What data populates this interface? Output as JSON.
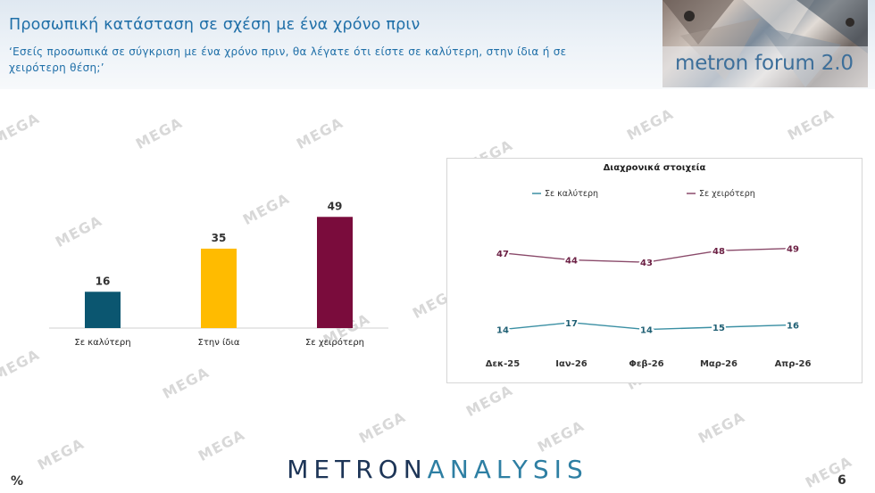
{
  "header": {
    "title": "Προσωπική κατάσταση σε σχέση με ένα χρόνο πριν",
    "subtitle": "‘Εσείς προσωπικά σε σύγκριση με ένα χρόνο πριν, θα λέγατε ότι είστε σε καλύτερη, στην ίδια ή σε χειρότερη θέση;’",
    "logo_text": "metron forum 2.0"
  },
  "watermark_text": "MEGA",
  "chart_data": [
    {
      "type": "bar",
      "categories": [
        "Σε καλύτερη",
        "Στην ίδια",
        "Σε χειρότερη"
      ],
      "values": [
        16,
        35,
        49
      ],
      "colors": [
        "#0b5670",
        "#ffbb00",
        "#7a0c3c"
      ],
      "ylim": [
        0,
        55
      ],
      "grid": false
    },
    {
      "type": "line",
      "title": "Διαχρονικά στοιχεία",
      "x": [
        "Δεκ-25",
        "Ιαν-26",
        "Φεβ-26",
        "Μαρ-26",
        "Απρ-26"
      ],
      "series": [
        {
          "name": "Σε καλύτερη",
          "values": [
            14,
            17,
            14,
            15,
            16
          ],
          "color": "#3a8fa3",
          "label_color": "#1f5f73"
        },
        {
          "name": "Σε χειρότερη",
          "values": [
            47,
            44,
            43,
            48,
            49
          ],
          "color": "#8a4a6a",
          "label_color": "#6b1f43"
        }
      ],
      "legend": "top",
      "grid": false
    }
  ],
  "footer": {
    "brand_metron": "METRON",
    "brand_analysis": "ANALYSIS",
    "percent_symbol": "%",
    "page_number": "6"
  }
}
